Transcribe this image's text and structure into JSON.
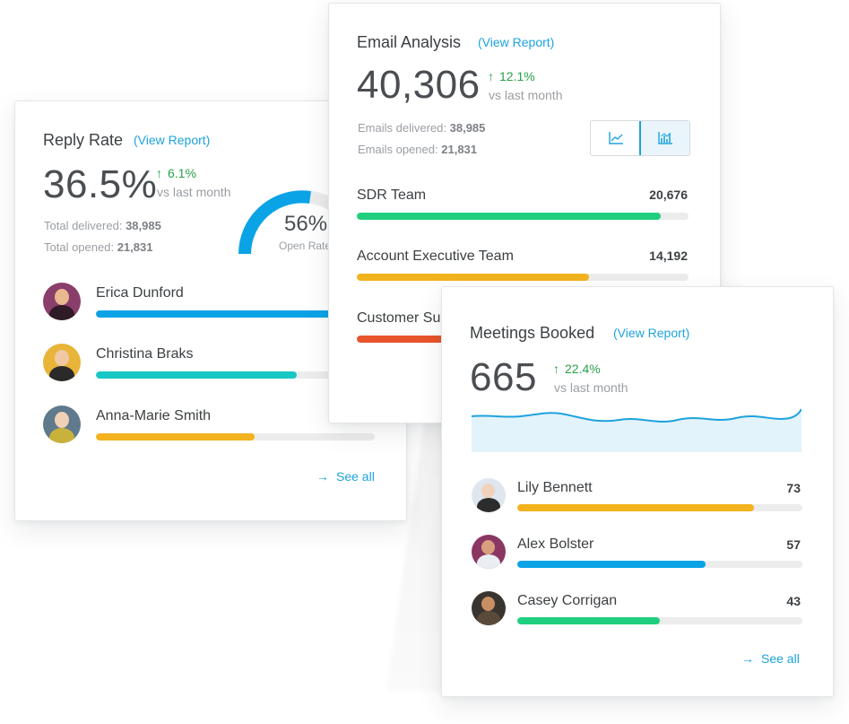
{
  "colors": {
    "accent": "#1da3dd",
    "positive": "#2aa04a",
    "green": "#1fcf7e",
    "yellow": "#f2b31f",
    "red": "#e8542b",
    "teal": "#17c7c3",
    "blue": "#0aa3e6",
    "track": "#ececec"
  },
  "reply_rate": {
    "title": "Reply Rate",
    "link": "(View Report)",
    "value": "36.5%",
    "delta": "6.1%",
    "vs": "vs last month",
    "delivered_label": "Total delivered:",
    "delivered_value": "38,985",
    "opened_label": "Total opened:",
    "opened_value": "21,831",
    "gauge": {
      "value": "56%",
      "label": "Open Rate",
      "fraction": 0.56
    },
    "people": [
      {
        "name": "Erica Dunford",
        "fraction": 1.0,
        "color": "#0aa3e6"
      },
      {
        "name": "Christina Braks",
        "fraction": 0.7,
        "color": "#17c7c3"
      },
      {
        "name": "Anna-Marie Smith",
        "fraction": 0.57,
        "color": "#f2b31f"
      }
    ],
    "see_all": "See all"
  },
  "email_analysis": {
    "title": "Email Analysis",
    "link": "(View Report)",
    "value": "40,306",
    "delta": "12.1%",
    "vs": "vs last month",
    "delivered_label": "Emails delivered:",
    "delivered_value": "38,985",
    "opened_label": "Emails opened:",
    "opened_value": "21,831",
    "view_toggle": {
      "line_icon": "line-chart-icon",
      "bar_icon": "bar-chart-icon",
      "active": "bar"
    },
    "teams": [
      {
        "name": "SDR Team",
        "value": "20,676",
        "fraction": 0.915,
        "color": "#1fcf7e"
      },
      {
        "name": "Account Executive Team",
        "value": "14,192",
        "fraction": 0.7,
        "color": "#f2b31f"
      },
      {
        "name": "Customer Su",
        "value": "",
        "fraction": 0.45,
        "color": "#e8542b"
      }
    ]
  },
  "meetings_booked": {
    "title": "Meetings Booked",
    "link": "(View Report)",
    "value": "665",
    "delta": "22.4%",
    "vs": "vs last month",
    "people": [
      {
        "name": "Lily Bennett",
        "value": "73",
        "fraction": 0.83,
        "color": "#f2b31f"
      },
      {
        "name": "Alex Bolster",
        "value": "57",
        "fraction": 0.66,
        "color": "#0aa3e6"
      },
      {
        "name": "Casey Corrigan",
        "value": "43",
        "fraction": 0.5,
        "color": "#1fcf7e"
      }
    ],
    "see_all": "See all"
  }
}
